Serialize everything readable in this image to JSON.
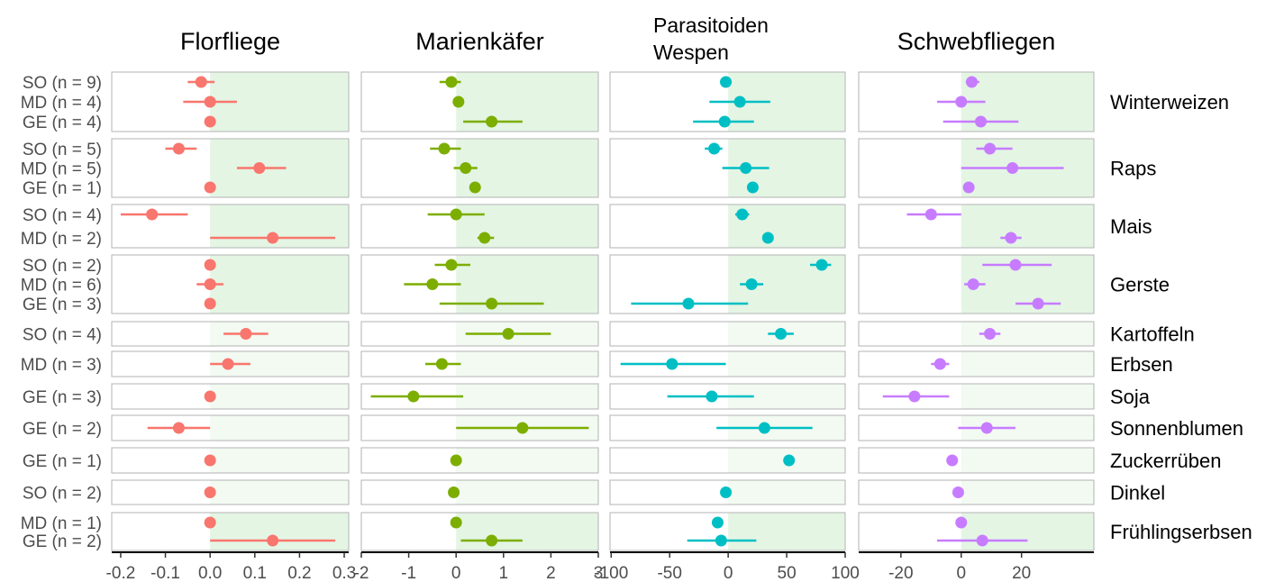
{
  "chart_data": {
    "type": "forest",
    "colors": {
      "Florfliege": "#f8766d",
      "Marienkäfer": "#7cae00",
      "Parasitoiden Wespen": "#00bfc4",
      "Schwebfliegen": "#c77cff",
      "positive_fill": "#e4f5e4",
      "positive_fill_light": "#f2faf2",
      "panel_border": "#b3b3b3",
      "label_text": "#4d4d4d"
    },
    "columns": [
      {
        "key": "Florfliege",
        "title_lines": [
          "Florfliege"
        ],
        "xlim": [
          -0.22,
          0.31
        ],
        "ticks": [
          -0.2,
          -0.1,
          0.0,
          0.1,
          0.2,
          0.3
        ],
        "tick_labels": [
          "-0.2",
          "-0.1",
          "0.0",
          "0.1",
          "0.2",
          "0.3"
        ]
      },
      {
        "key": "Marienkäfer",
        "title_lines": [
          "Marienkäfer"
        ],
        "xlim": [
          -2.0,
          3.0
        ],
        "ticks": [
          -2,
          -1,
          0,
          1,
          2,
          3
        ],
        "tick_labels": [
          "-2",
          "-1",
          "0",
          "1",
          "2",
          "3"
        ]
      },
      {
        "key": "Parasitoiden Wespen",
        "title_lines": [
          "Parasitoiden",
          "Wespen"
        ],
        "xlim": [
          -101,
          100
        ],
        "ticks": [
          -100,
          -50,
          0,
          50,
          100
        ],
        "tick_labels": [
          "-100",
          "-50",
          "0",
          "50",
          "100"
        ]
      },
      {
        "key": "Schwebfliegen",
        "title_lines": [
          "Schwebfliegen"
        ],
        "xlim": [
          -34,
          44
        ],
        "ticks": [
          -20,
          0,
          20
        ],
        "tick_labels": [
          "-20",
          "0",
          "20"
        ]
      }
    ],
    "rows": [
      {
        "crop": "Winterweizen",
        "shade": "full",
        "labels": [
          "SO (n = 9)",
          "MD (n = 4)",
          "GE (n = 4)"
        ],
        "data": [
          [
            {
              "est": -0.02,
              "lo": -0.05,
              "hi": 0.01
            },
            {
              "est": 0.0,
              "lo": -0.06,
              "hi": 0.06
            },
            {
              "est": 0.0
            }
          ],
          [
            {
              "est": -0.1,
              "lo": -0.35,
              "hi": 0.1
            },
            {
              "est": 0.05
            },
            {
              "est": 0.75,
              "lo": 0.15,
              "hi": 1.4
            }
          ],
          [
            {
              "est": -2,
              "lo": -7,
              "hi": 3
            },
            {
              "est": 10,
              "lo": -16,
              "hi": 36
            },
            {
              "est": -3,
              "lo": -30,
              "hi": 22
            }
          ],
          [
            {
              "est": 3.5,
              "lo": 1.5,
              "hi": 6
            },
            {
              "est": 0,
              "lo": -8,
              "hi": 8
            },
            {
              "est": 6.5,
              "lo": -6,
              "hi": 19
            }
          ]
        ]
      },
      {
        "crop": "Raps",
        "shade": "full",
        "labels": [
          "SO (n = 5)",
          "MD (n = 5)",
          "GE (n = 1)"
        ],
        "data": [
          [
            {
              "est": -0.07,
              "lo": -0.1,
              "hi": -0.03
            },
            {
              "est": 0.11,
              "lo": 0.06,
              "hi": 0.17
            },
            {
              "est": 0.0
            }
          ],
          [
            {
              "est": -0.25,
              "lo": -0.55,
              "hi": 0.1
            },
            {
              "est": 0.2,
              "lo": -0.05,
              "hi": 0.45
            },
            {
              "est": 0.4
            }
          ],
          [
            {
              "est": -12,
              "lo": -20,
              "hi": -5
            },
            {
              "est": 15,
              "lo": -5,
              "hi": 35
            },
            {
              "est": 21
            }
          ],
          [
            {
              "est": 9.5,
              "lo": 5,
              "hi": 17
            },
            {
              "est": 17,
              "lo": 0,
              "hi": 34
            },
            {
              "est": 2.5
            }
          ]
        ]
      },
      {
        "crop": "Mais",
        "shade": "full",
        "labels": [
          "SO (n = 4)",
          "MD (n = 2)"
        ],
        "data": [
          [
            {
              "est": -0.13,
              "lo": -0.2,
              "hi": -0.05
            },
            {
              "est": 0.14,
              "lo": 0.0,
              "hi": 0.28
            }
          ],
          [
            {
              "est": 0.0,
              "lo": -0.6,
              "hi": 0.6
            },
            {
              "est": 0.6,
              "lo": 0.45,
              "hi": 0.8
            }
          ],
          [
            {
              "est": 12,
              "lo": 6,
              "hi": 18
            },
            {
              "est": 34
            }
          ],
          [
            {
              "est": -10,
              "lo": -18,
              "hi": 0
            },
            {
              "est": 16.5,
              "lo": 13,
              "hi": 20
            }
          ]
        ]
      },
      {
        "crop": "Gerste",
        "shade": "full",
        "labels": [
          "SO (n = 2)",
          "MD (n = 6)",
          "GE (n = 3)"
        ],
        "data": [
          [
            {
              "est": 0.0
            },
            {
              "est": 0.0,
              "lo": -0.03,
              "hi": 0.03
            },
            {
              "est": 0.0
            }
          ],
          [
            {
              "est": -0.1,
              "lo": -0.45,
              "hi": 0.3
            },
            {
              "est": -0.5,
              "lo": -1.1,
              "hi": 0.1
            },
            {
              "est": 0.75,
              "lo": -0.35,
              "hi": 1.85
            }
          ],
          [
            {
              "est": 80,
              "lo": 70,
              "hi": 88
            },
            {
              "est": 20,
              "lo": 10,
              "hi": 30
            },
            {
              "est": -34,
              "lo": -83,
              "hi": 17
            }
          ],
          [
            {
              "est": 18,
              "lo": 7,
              "hi": 30
            },
            {
              "est": 4,
              "lo": 1,
              "hi": 8
            },
            {
              "est": 25.5,
              "lo": 18,
              "hi": 33
            }
          ]
        ]
      },
      {
        "crop": "Kartoffeln",
        "shade": "light",
        "labels": [
          "SO (n = 4)"
        ],
        "data": [
          [
            {
              "est": 0.08,
              "lo": 0.03,
              "hi": 0.13
            }
          ],
          [
            {
              "est": 1.1,
              "lo": 0.2,
              "hi": 2.0
            }
          ],
          [
            {
              "est": 45,
              "lo": 34,
              "hi": 56
            }
          ],
          [
            {
              "est": 9.5,
              "lo": 6,
              "hi": 13
            }
          ]
        ]
      },
      {
        "crop": "Erbsen",
        "shade": "light",
        "labels": [
          "MD (n = 3)"
        ],
        "data": [
          [
            {
              "est": 0.04,
              "lo": 0.0,
              "hi": 0.09
            }
          ],
          [
            {
              "est": -0.3,
              "lo": -0.65,
              "hi": 0.1
            }
          ],
          [
            {
              "est": -48,
              "lo": -92,
              "hi": -2
            }
          ],
          [
            {
              "est": -7,
              "lo": -10,
              "hi": -4
            }
          ]
        ]
      },
      {
        "crop": "Soja",
        "shade": "light",
        "labels": [
          "GE (n = 3)"
        ],
        "data": [
          [
            {
              "est": 0.0
            }
          ],
          [
            {
              "est": -0.9,
              "lo": -1.8,
              "hi": 0.15
            }
          ],
          [
            {
              "est": -14,
              "lo": -52,
              "hi": 22
            }
          ],
          [
            {
              "est": -15.5,
              "lo": -26,
              "hi": -4
            }
          ]
        ]
      },
      {
        "crop": "Sonnenblumen",
        "shade": "light",
        "labels": [
          "GE (n = 2)"
        ],
        "data": [
          [
            {
              "est": -0.07,
              "lo": -0.14,
              "hi": 0.0
            }
          ],
          [
            {
              "est": 1.4,
              "lo": 0.0,
              "hi": 2.8
            }
          ],
          [
            {
              "est": 31,
              "lo": -10,
              "hi": 72
            }
          ],
          [
            {
              "est": 8.5,
              "lo": -1,
              "hi": 18
            }
          ]
        ]
      },
      {
        "crop": "Zuckerrüben",
        "shade": "light",
        "labels": [
          "GE (n = 1)"
        ],
        "data": [
          [
            {
              "est": 0.0
            }
          ],
          [
            {
              "est": 0.0
            }
          ],
          [
            {
              "est": 52
            }
          ],
          [
            {
              "est": -3
            }
          ]
        ]
      },
      {
        "crop": "Dinkel",
        "shade": "light",
        "labels": [
          "SO (n = 2)"
        ],
        "data": [
          [
            {
              "est": 0.0
            }
          ],
          [
            {
              "est": -0.05
            }
          ],
          [
            {
              "est": -2
            }
          ],
          [
            {
              "est": -1
            }
          ]
        ]
      },
      {
        "crop": "Frühlingserbsen",
        "shade": "full",
        "labels": [
          "MD (n = 1)",
          "GE (n = 2)"
        ],
        "data": [
          [
            {
              "est": 0.0
            },
            {
              "est": 0.14,
              "lo": 0.0,
              "hi": 0.28
            }
          ],
          [
            {
              "est": 0.0
            },
            {
              "est": 0.75,
              "lo": 0.1,
              "hi": 1.4
            }
          ],
          [
            {
              "est": -9
            },
            {
              "est": -6,
              "lo": -35,
              "hi": 24
            }
          ],
          [
            {
              "est": 0
            },
            {
              "est": 7,
              "lo": -8,
              "hi": 22
            }
          ]
        ]
      }
    ]
  }
}
